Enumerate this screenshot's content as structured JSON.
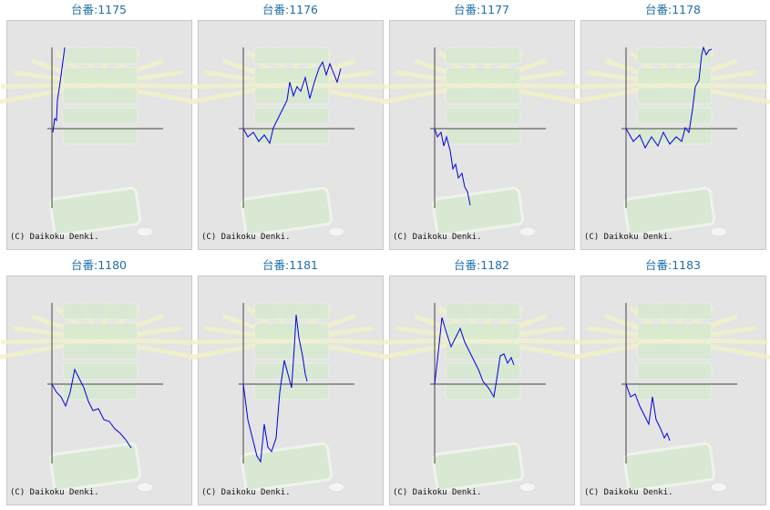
{
  "chart_data": [
    {
      "type": "line",
      "title": "台番:1175",
      "annotation": "(C) Daikoku Denki.",
      "color": "#0000dd",
      "xlim": [
        0,
        122
      ],
      "ylim": [
        -87,
        89
      ],
      "x": [
        1,
        3,
        5,
        6,
        9,
        11,
        13,
        14
      ],
      "values": [
        -4,
        11,
        9,
        31,
        51,
        66,
        81,
        89
      ]
    },
    {
      "type": "line",
      "title": "台番:1176",
      "annotation": "(C) Daikoku Denki.",
      "color": "#0000dd",
      "xlim": [
        0,
        122
      ],
      "ylim": [
        -87,
        89
      ],
      "x": [
        0,
        5,
        11,
        17,
        23,
        29,
        33,
        38,
        43,
        48,
        51,
        55,
        59,
        63,
        68,
        73,
        78,
        83,
        87,
        91,
        95,
        99,
        103,
        107
      ],
      "values": [
        0,
        -9,
        -4,
        -14,
        -7,
        -16,
        1,
        11,
        21,
        31,
        51,
        36,
        46,
        41,
        56,
        33,
        51,
        66,
        73,
        59,
        71,
        61,
        51,
        66
      ]
    },
    {
      "type": "line",
      "title": "台番:1177",
      "annotation": "(C) Daikoku Denki.",
      "color": "#0000dd",
      "xlim": [
        0,
        122
      ],
      "ylim": [
        -87,
        89
      ],
      "x": [
        0,
        3,
        7,
        10,
        13,
        17,
        20,
        23,
        26,
        30,
        33,
        36,
        39
      ],
      "values": [
        0,
        -9,
        -4,
        -19,
        -9,
        -24,
        -44,
        -39,
        -54,
        -49,
        -64,
        -69,
        -84
      ]
    },
    {
      "type": "line",
      "title": "台番:1178",
      "annotation": "(C) Daikoku Denki.",
      "color": "#0000dd",
      "xlim": [
        0,
        122
      ],
      "ylim": [
        -87,
        89
      ],
      "x": [
        0,
        8,
        15,
        21,
        28,
        35,
        41,
        48,
        55,
        61,
        65,
        69,
        73,
        76,
        80,
        83,
        85,
        88,
        91,
        94
      ],
      "values": [
        0,
        -14,
        -7,
        -21,
        -9,
        -19,
        -4,
        -17,
        -9,
        -14,
        1,
        -4,
        21,
        46,
        53,
        81,
        89,
        81,
        86,
        87
      ]
    },
    {
      "type": "line",
      "title": "台番:1180",
      "annotation": "(C) Daikoku Denki.",
      "color": "#0000dd",
      "xlim": [
        0,
        122
      ],
      "ylim": [
        -87,
        89
      ],
      "x": [
        0,
        5,
        10,
        15,
        20,
        25,
        30,
        35,
        40,
        45,
        51,
        57,
        63,
        69,
        75,
        81,
        87
      ],
      "values": [
        0,
        -9,
        -14,
        -24,
        -9,
        16,
        6,
        -4,
        -19,
        -29,
        -27,
        -39,
        -41,
        -49,
        -54,
        -61,
        -70
      ]
    },
    {
      "type": "line",
      "title": "台番:1181",
      "annotation": "(C) Daikoku Denki.",
      "color": "#0000dd",
      "xlim": [
        0,
        122
      ],
      "ylim": [
        -87,
        89
      ],
      "x": [
        0,
        5,
        10,
        15,
        19,
        23,
        27,
        31,
        36,
        40,
        45,
        49,
        53,
        56,
        58,
        61,
        65,
        68,
        70
      ],
      "values": [
        0,
        -39,
        -59,
        -79,
        -85,
        -44,
        -69,
        -74,
        -59,
        -9,
        26,
        11,
        -4,
        41,
        76,
        51,
        31,
        11,
        3
      ]
    },
    {
      "type": "line",
      "title": "台番:1182",
      "annotation": "(C) Daikoku Denki.",
      "color": "#0000dd",
      "xlim": [
        0,
        122
      ],
      "ylim": [
        -87,
        89
      ],
      "x": [
        0,
        3,
        8,
        13,
        18,
        23,
        28,
        33,
        38,
        43,
        48,
        53,
        59,
        65,
        69,
        72,
        76,
        80,
        84,
        87
      ],
      "values": [
        0,
        26,
        73,
        56,
        41,
        51,
        61,
        46,
        36,
        26,
        16,
        3,
        -4,
        -14,
        11,
        31,
        33,
        23,
        29,
        21
      ]
    },
    {
      "type": "line",
      "title": "台番:1183",
      "annotation": "(C) Daikoku Denki.",
      "color": "#0000dd",
      "xlim": [
        0,
        122
      ],
      "ylim": [
        -87,
        89
      ],
      "x": [
        0,
        5,
        10,
        15,
        20,
        25,
        29,
        33,
        38,
        42,
        45,
        48
      ],
      "values": [
        0,
        -14,
        -11,
        -24,
        -34,
        -44,
        -14,
        -39,
        -49,
        -59,
        -54,
        -62
      ]
    }
  ]
}
